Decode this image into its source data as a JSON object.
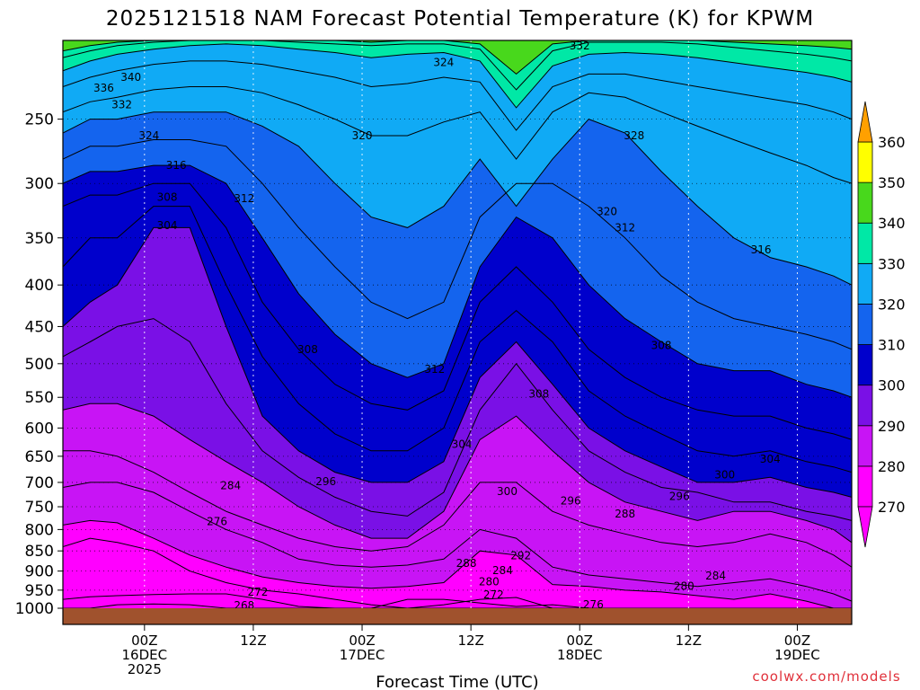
{
  "title": "2025121518 NAM Forecast Potential Temperature (K) for KPWM",
  "credit": "coolwx.com/models",
  "colors": {
    "ground": "#a0522d",
    "credit": "#e0303a"
  },
  "chart_data": {
    "type": "heatmap",
    "title": "2025121518 NAM Forecast Potential Temperature (K) for KPWM",
    "xlabel": "Forecast Time (UTC)",
    "ylabel": "",
    "y_scale": "log-pressure",
    "y_axis_reversed": true,
    "ylim": [
      200,
      1000
    ],
    "y_ticks": [
      250,
      300,
      350,
      400,
      450,
      500,
      550,
      600,
      650,
      700,
      750,
      800,
      850,
      900,
      950,
      1000
    ],
    "x_ticks": [
      {
        "hour": 6,
        "label": [
          "00Z",
          "16DEC",
          "2025"
        ]
      },
      {
        "hour": 18,
        "label": [
          "12Z"
        ]
      },
      {
        "hour": 30,
        "label": [
          "00Z",
          "17DEC"
        ]
      },
      {
        "hour": 42,
        "label": [
          "12Z"
        ]
      },
      {
        "hour": 54,
        "label": [
          "00Z",
          "18DEC"
        ]
      },
      {
        "hour": 66,
        "label": [
          "12Z"
        ]
      },
      {
        "hour": 78,
        "label": [
          "00Z",
          "19DEC"
        ]
      }
    ],
    "xlim": [
      -3,
      84
    ],
    "grid": true,
    "colorbar": {
      "levels": [
        270,
        280,
        290,
        300,
        310,
        320,
        330,
        340,
        350,
        360
      ],
      "colors": [
        "#ff00ff",
        "#c814f5",
        "#7a10e6",
        "#0000cc",
        "#1464ee",
        "#10aaf5",
        "#00e8a6",
        "#48d81c",
        "#ffff00",
        "#ffa000"
      ]
    },
    "contour_interval": 2,
    "series": [
      {
        "level": 268,
        "p": [
          1000,
          1000,
          990,
          988,
          990,
          1000,
          1000,
          1000,
          1000,
          1000,
          1000,
          1000,
          1000,
          1000,
          1000,
          1000,
          1000,
          1000,
          1000,
          1000,
          1000,
          1000,
          1000,
          1000
        ]
      },
      {
        "level": 272,
        "p": [
          975,
          968,
          965,
          962,
          960,
          960,
          975,
          995,
          1000,
          1000,
          975,
          975,
          985,
          995,
          990,
          1000,
          1000,
          1000,
          1000,
          1000,
          1000,
          1000,
          1000,
          1000
        ]
      },
      {
        "level": 276,
        "p": [
          840,
          820,
          830,
          850,
          900,
          930,
          950,
          960,
          975,
          990,
          1000,
          990,
          975,
          970,
          1000,
          1000,
          1000,
          1000,
          1000,
          1000,
          1000,
          1000,
          1000,
          1000
        ]
      },
      {
        "level": 280,
        "p": [
          790,
          780,
          785,
          820,
          860,
          890,
          915,
          930,
          940,
          945,
          940,
          930,
          850,
          860,
          935,
          940,
          950,
          955,
          965,
          975,
          960,
          980,
          1000,
          1000
        ]
      },
      {
        "level": 284,
        "p": [
          710,
          700,
          700,
          720,
          760,
          800,
          830,
          870,
          885,
          890,
          885,
          870,
          800,
          820,
          890,
          910,
          920,
          930,
          940,
          930,
          920,
          940,
          960,
          980
        ]
      },
      {
        "level": 288,
        "p": [
          640,
          640,
          650,
          680,
          720,
          760,
          790,
          820,
          840,
          850,
          840,
          790,
          700,
          700,
          760,
          790,
          810,
          830,
          840,
          830,
          810,
          830,
          860,
          890
        ]
      },
      {
        "level": 292,
        "p": [
          570,
          560,
          560,
          580,
          620,
          660,
          700,
          750,
          790,
          820,
          820,
          760,
          620,
          580,
          640,
          700,
          740,
          760,
          780,
          760,
          760,
          780,
          800,
          830
        ]
      },
      {
        "level": 296,
        "p": [
          490,
          470,
          450,
          440,
          470,
          560,
          640,
          690,
          730,
          760,
          770,
          720,
          570,
          500,
          570,
          640,
          680,
          710,
          720,
          740,
          740,
          760,
          770,
          780
        ]
      },
      {
        "level": 300,
        "p": [
          450,
          420,
          400,
          340,
          340,
          450,
          580,
          640,
          680,
          700,
          700,
          660,
          520,
          470,
          530,
          600,
          640,
          670,
          700,
          700,
          690,
          710,
          720,
          730
        ]
      },
      {
        "level": 304,
        "p": [
          380,
          350,
          350,
          320,
          320,
          400,
          490,
          560,
          610,
          640,
          640,
          600,
          470,
          430,
          470,
          540,
          580,
          610,
          640,
          650,
          640,
          660,
          670,
          680
        ]
      },
      {
        "level": 308,
        "p": [
          320,
          310,
          310,
          300,
          300,
          340,
          420,
          480,
          530,
          560,
          570,
          540,
          420,
          380,
          420,
          480,
          520,
          550,
          570,
          580,
          580,
          600,
          610,
          620
        ]
      },
      {
        "level": 312,
        "p": [
          300,
          290,
          290,
          285,
          285,
          300,
          350,
          410,
          460,
          500,
          520,
          500,
          380,
          330,
          350,
          400,
          440,
          470,
          500,
          510,
          510,
          530,
          540,
          550
        ]
      },
      {
        "level": 316,
        "p": [
          280,
          270,
          270,
          265,
          265,
          270,
          300,
          340,
          380,
          420,
          440,
          420,
          330,
          300,
          300,
          320,
          350,
          390,
          420,
          440,
          450,
          460,
          470,
          480
        ]
      },
      {
        "level": 320,
        "p": [
          260,
          250,
          250,
          245,
          245,
          245,
          255,
          270,
          300,
          330,
          340,
          320,
          280,
          320,
          280,
          250,
          260,
          290,
          320,
          350,
          370,
          380,
          390,
          400
        ]
      },
      {
        "level": 324,
        "p": [
          245,
          238,
          235,
          230,
          228,
          228,
          232,
          240,
          250,
          262,
          262,
          252,
          245,
          280,
          245,
          232,
          235,
          245,
          255,
          265,
          275,
          285,
          295,
          300
        ]
      },
      {
        "level": 328,
        "p": [
          228,
          222,
          218,
          214,
          212,
          212,
          214,
          218,
          222,
          228,
          226,
          222,
          225,
          258,
          228,
          220,
          220,
          224,
          228,
          232,
          236,
          240,
          245,
          250
        ]
      },
      {
        "level": 332,
        "p": [
          218,
          212,
          208,
          205,
          203,
          202,
          203,
          205,
          207,
          210,
          208,
          207,
          212,
          242,
          215,
          208,
          207,
          208,
          210,
          213,
          216,
          219,
          222,
          225
        ]
      },
      {
        "level": 336,
        "p": [
          210,
          206,
          203,
          201,
          200,
          200,
          200,
          201,
          202,
          203,
          202,
          202,
          205,
          230,
          206,
          201,
          201,
          201,
          202,
          204,
          206,
          208,
          210,
          212
        ]
      },
      {
        "level": 340,
        "p": [
          206,
          203,
          201,
          200,
          200,
          200,
          200,
          200,
          200,
          201,
          200,
          200,
          202,
          220,
          202,
          200,
          200,
          200,
          200,
          201,
          202,
          203,
          204,
          205
        ]
      }
    ],
    "series_hours": [
      -3,
      0,
      3,
      7,
      11,
      15,
      19,
      23,
      27,
      31,
      35,
      39,
      43,
      47,
      51,
      55,
      59,
      63,
      67,
      71,
      75,
      79,
      82,
      84
    ],
    "annotations": [
      {
        "text": "336",
        "hour": 1.5,
        "p": 229
      },
      {
        "text": "340",
        "hour": 4.5,
        "p": 222
      },
      {
        "text": "332",
        "hour": 3.5,
        "p": 240
      },
      {
        "text": "324",
        "hour": 6.5,
        "p": 262
      },
      {
        "text": "316",
        "hour": 9.5,
        "p": 285
      },
      {
        "text": "308",
        "hour": 8.5,
        "p": 312
      },
      {
        "text": "304",
        "hour": 8.5,
        "p": 338
      },
      {
        "text": "312",
        "hour": 17,
        "p": 313
      },
      {
        "text": "324",
        "hour": 39,
        "p": 213
      },
      {
        "text": "332",
        "hour": 54,
        "p": 203
      },
      {
        "text": "320",
        "hour": 30,
        "p": 262
      },
      {
        "text": "328",
        "hour": 60,
        "p": 262
      },
      {
        "text": "320",
        "hour": 57,
        "p": 325
      },
      {
        "text": "312",
        "hour": 59,
        "p": 340
      },
      {
        "text": "316",
        "hour": 74,
        "p": 362
      },
      {
        "text": "308",
        "hour": 24,
        "p": 480
      },
      {
        "text": "312",
        "hour": 38,
        "p": 508
      },
      {
        "text": "308",
        "hour": 49.5,
        "p": 545
      },
      {
        "text": "308",
        "hour": 63,
        "p": 475
      },
      {
        "text": "304",
        "hour": 41,
        "p": 628
      },
      {
        "text": "304",
        "hour": 75,
        "p": 655
      },
      {
        "text": "300",
        "hour": 70,
        "p": 685
      },
      {
        "text": "296",
        "hour": 26,
        "p": 698
      },
      {
        "text": "300",
        "hour": 46,
        "p": 718
      },
      {
        "text": "296",
        "hour": 53,
        "p": 738
      },
      {
        "text": "296",
        "hour": 65,
        "p": 728
      },
      {
        "text": "284",
        "hour": 15.5,
        "p": 706
      },
      {
        "text": "276",
        "hour": 14,
        "p": 782
      },
      {
        "text": "288",
        "hour": 59,
        "p": 765
      },
      {
        "text": "292",
        "hour": 47.5,
        "p": 862
      },
      {
        "text": "288",
        "hour": 41.5,
        "p": 880
      },
      {
        "text": "284",
        "hour": 45.5,
        "p": 898
      },
      {
        "text": "280",
        "hour": 44,
        "p": 928
      },
      {
        "text": "272",
        "hour": 44.5,
        "p": 962
      },
      {
        "text": "284",
        "hour": 69,
        "p": 912
      },
      {
        "text": "280",
        "hour": 65.5,
        "p": 940
      },
      {
        "text": "272",
        "hour": 18.5,
        "p": 955
      },
      {
        "text": "268",
        "hour": 17,
        "p": 993
      },
      {
        "text": "276",
        "hour": 55.5,
        "p": 990
      }
    ]
  }
}
